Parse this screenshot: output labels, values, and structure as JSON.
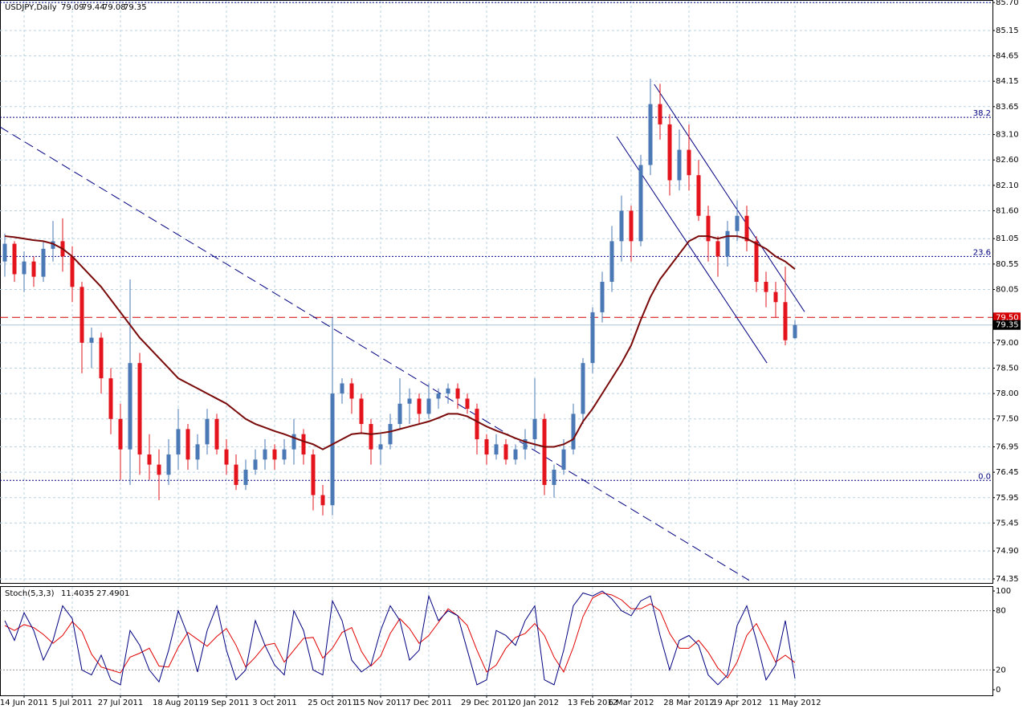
{
  "chart_data": {
    "type": "candlestick",
    "title": "USDJPY,Daily",
    "categories": [
      null,
      null,
      "14 Jun 2011",
      null,
      null,
      null,
      null,
      "5 Jul 2011",
      null,
      null,
      null,
      null,
      "27 Jul 2011",
      null,
      null,
      null,
      null,
      null,
      "18 Aug 2011",
      null,
      null,
      null,
      null,
      "9 Sep 2011",
      null,
      null,
      null,
      null,
      "3 Oct 2011",
      null,
      null,
      null,
      null,
      null,
      "25 Oct 2011",
      null,
      null,
      null,
      null,
      "15 Nov 2011",
      null,
      null,
      null,
      null,
      "7 Dec 2011",
      null,
      null,
      null,
      null,
      null,
      "29 Dec 2011",
      null,
      null,
      null,
      null,
      "20 Jan 2012",
      null,
      null,
      null,
      null,
      null,
      "13 Feb 2012",
      null,
      null,
      null,
      "6 Mar 2012",
      null,
      null,
      null,
      null,
      null,
      "28 Mar 2012",
      null,
      null,
      null,
      null,
      "19 Apr 2012",
      null,
      null,
      null,
      null,
      null,
      "11 May 2012"
    ],
    "open": [
      80.6,
      80.95,
      80.35,
      80.6,
      80.3,
      80.85,
      81.0,
      80.7,
      80.1,
      79.0,
      79.1,
      78.3,
      77.5,
      76.9,
      78.6,
      76.8,
      76.6,
      76.4,
      76.8,
      77.3,
      76.7,
      77.0,
      77.5,
      76.9,
      76.6,
      76.2,
      76.5,
      76.7,
      76.9,
      76.7,
      76.9,
      77.2,
      76.8,
      76.0,
      75.8,
      78.0,
      78.2,
      77.9,
      77.4,
      76.9,
      77.0,
      77.4,
      77.8,
      77.9,
      77.6,
      77.9,
      78.0,
      78.1,
      77.9,
      77.7,
      77.1,
      76.8,
      77.0,
      76.7,
      76.9,
      77.1,
      77.5,
      76.2,
      76.5,
      76.9,
      77.6,
      78.6,
      79.6,
      80.2,
      81.0,
      81.6,
      81.0,
      82.5,
      83.7,
      83.3,
      82.2,
      82.8,
      82.3,
      81.5,
      81.0,
      80.7,
      81.2,
      81.5,
      81.0,
      80.2,
      80.0,
      79.8,
      79.09
    ],
    "high": [
      81.15,
      81.0,
      80.8,
      80.7,
      81.0,
      81.4,
      81.45,
      80.9,
      80.2,
      79.3,
      79.2,
      78.5,
      77.8,
      80.25,
      78.8,
      77.2,
      76.9,
      77.1,
      77.7,
      77.4,
      77.2,
      77.7,
      77.6,
      77.1,
      76.8,
      76.7,
      76.9,
      77.1,
      77.0,
      77.1,
      77.5,
      77.3,
      76.9,
      76.2,
      79.5,
      78.3,
      78.3,
      78.0,
      77.5,
      77.2,
      77.6,
      78.3,
      78.1,
      78.0,
      78.2,
      78.1,
      78.2,
      78.2,
      78.0,
      77.8,
      77.2,
      77.2,
      77.1,
      77.0,
      77.3,
      78.3,
      77.6,
      76.6,
      77.1,
      77.8,
      78.7,
      79.7,
      80.4,
      81.3,
      81.9,
      81.7,
      82.7,
      84.2,
      84.1,
      83.5,
      83.2,
      83.3,
      82.6,
      81.7,
      81.1,
      81.4,
      81.8,
      81.7,
      81.1,
      80.4,
      80.2,
      80.5,
      79.44
    ],
    "low": [
      80.3,
      80.2,
      80.0,
      80.1,
      80.2,
      80.6,
      80.4,
      79.8,
      78.4,
      78.5,
      78.0,
      77.2,
      76.3,
      76.2,
      76.4,
      76.3,
      75.9,
      76.2,
      76.5,
      76.5,
      76.5,
      76.8,
      76.8,
      76.4,
      76.1,
      76.1,
      76.4,
      76.5,
      76.5,
      76.6,
      76.6,
      76.6,
      75.7,
      75.6,
      75.6,
      77.8,
      77.6,
      77.2,
      76.6,
      76.6,
      76.9,
      77.3,
      77.4,
      77.4,
      77.5,
      77.7,
      77.8,
      77.7,
      77.6,
      76.8,
      76.6,
      76.7,
      76.6,
      76.6,
      76.7,
      76.9,
      76.0,
      75.95,
      76.4,
      76.8,
      77.4,
      78.4,
      79.4,
      80.0,
      80.6,
      80.6,
      80.9,
      82.3,
      83.0,
      81.9,
      82.0,
      82.0,
      81.4,
      80.6,
      80.3,
      80.5,
      81.0,
      80.8,
      80.0,
      79.7,
      79.5,
      78.95,
      79.08
    ],
    "close": [
      80.95,
      80.35,
      80.6,
      80.3,
      80.85,
      81.0,
      80.7,
      80.1,
      79.0,
      79.1,
      78.3,
      77.5,
      76.9,
      78.6,
      76.8,
      76.6,
      76.4,
      76.8,
      77.3,
      76.7,
      77.0,
      77.5,
      76.9,
      76.6,
      76.2,
      76.5,
      76.7,
      76.9,
      76.7,
      76.9,
      77.2,
      76.8,
      76.0,
      75.8,
      78.0,
      78.2,
      77.9,
      77.4,
      76.9,
      77.0,
      77.4,
      77.8,
      77.9,
      77.6,
      77.9,
      78.0,
      78.1,
      77.9,
      77.7,
      77.1,
      76.8,
      77.0,
      76.7,
      76.9,
      77.1,
      77.5,
      76.2,
      76.5,
      76.9,
      77.6,
      78.6,
      79.6,
      80.2,
      81.0,
      81.6,
      81.0,
      82.5,
      83.7,
      83.3,
      82.2,
      82.8,
      82.3,
      81.5,
      81.0,
      80.7,
      81.2,
      81.5,
      81.0,
      80.2,
      80.0,
      79.8,
      79.05,
      79.35
    ],
    "up_color": "#4a79b5",
    "down_color": "#e3141c",
    "ylim": [
      74.27,
      85.75
    ],
    "yticks": [
      {
        "value": 85.7,
        "label": "85.70"
      },
      {
        "value": 85.15,
        "label": "85.15"
      },
      {
        "value": 84.65,
        "label": "84.65"
      },
      {
        "value": 84.15,
        "label": "84.15"
      },
      {
        "value": 83.65,
        "label": "83.65"
      },
      {
        "value": 83.1,
        "label": "83.10"
      },
      {
        "value": 82.6,
        "label": "82.60"
      },
      {
        "value": 82.1,
        "label": "82.10"
      },
      {
        "value": 81.6,
        "label": "81.60"
      },
      {
        "value": 81.05,
        "label": "81.05"
      },
      {
        "value": 80.55,
        "label": "80.55"
      },
      {
        "value": 80.05,
        "label": "80.05"
      },
      {
        "value": 79,
        "label": "79.00"
      },
      {
        "value": 78.5,
        "label": "78.50"
      },
      {
        "value": 78,
        "label": "78.00"
      },
      {
        "value": 77.5,
        "label": "77.50"
      },
      {
        "value": 76.95,
        "label": "76.95"
      },
      {
        "value": 76.45,
        "label": "76.45"
      },
      {
        "value": 75.95,
        "label": "75.95"
      },
      {
        "value": 75.45,
        "label": "75.45"
      },
      {
        "value": 74.9,
        "label": "74.90"
      },
      {
        "value": 74.35,
        "label": "74.35"
      }
    ],
    "grid": true,
    "moving_average": {
      "color": "#7a0a0a",
      "values": [
        81.1,
        81.08,
        81.05,
        81.02,
        81.0,
        80.95,
        80.85,
        80.7,
        80.5,
        80.3,
        80.1,
        79.85,
        79.6,
        79.35,
        79.1,
        78.9,
        78.7,
        78.5,
        78.3,
        78.2,
        78.1,
        78.0,
        77.9,
        77.8,
        77.65,
        77.5,
        77.4,
        77.33,
        77.26,
        77.2,
        77.13,
        77.06,
        77.0,
        76.9,
        77.0,
        77.1,
        77.2,
        77.22,
        77.2,
        77.22,
        77.25,
        77.3,
        77.35,
        77.4,
        77.45,
        77.52,
        77.6,
        77.6,
        77.55,
        77.45,
        77.35,
        77.27,
        77.2,
        77.12,
        77.05,
        77.0,
        76.95,
        76.95,
        77.0,
        77.1,
        77.45,
        77.7,
        78.0,
        78.3,
        78.6,
        78.95,
        79.45,
        79.9,
        80.25,
        80.5,
        80.75,
        81.0,
        81.1,
        81.1,
        81.05,
        81.1,
        81.1,
        81.05,
        80.95,
        80.85,
        80.7,
        80.6,
        80.45
      ]
    },
    "levels": [
      {
        "value": 85.7,
        "label": ""
      },
      {
        "value": 83.44,
        "label": "38.2"
      },
      {
        "value": 80.7,
        "label": "23.6"
      },
      {
        "value": 76.29,
        "label": "0.0"
      }
    ],
    "price_lines": [
      {
        "value": 79.5,
        "label": "79.50",
        "color": "#d40000"
      }
    ],
    "trendlines": [
      {
        "x": [
          -0.5,
          77.25
        ],
        "y": [
          83.25,
          74.32
        ],
        "dashed": true
      },
      {
        "x": [
          67.4,
          83
        ],
        "y": [
          84.09,
          79.61
        ],
        "dashed": false
      },
      {
        "x": [
          63.5,
          79.1
        ],
        "y": [
          83.06,
          78.6
        ],
        "dashed": false
      }
    ],
    "oscillator": {
      "title": "Stoch(5,3,3)",
      "ylim": [
        -5.7,
        104.1
      ],
      "yticks": [
        100,
        80,
        20,
        0
      ],
      "levels": [
        80,
        20
      ],
      "series": [
        {
          "color": "#000080",
          "values": [
            70,
            50,
            78,
            60,
            30,
            50,
            85,
            72,
            20,
            15,
            35,
            10,
            5,
            60,
            45,
            20,
            8,
            40,
            80,
            55,
            18,
            60,
            85,
            40,
            10,
            20,
            70,
            45,
            25,
            15,
            80,
            60,
            20,
            15,
            90,
            70,
            30,
            18,
            25,
            60,
            85,
            70,
            30,
            40,
            95,
            70,
            80,
            75,
            40,
            5,
            10,
            60,
            55,
            45,
            70,
            85,
            10,
            5,
            40,
            85,
            98,
            95,
            100,
            92,
            80,
            75,
            90,
            95,
            55,
            20,
            50,
            55,
            45,
            15,
            5,
            15,
            65,
            85,
            50,
            10,
            25,
            70,
            11.4035
          ]
        },
        {
          "color": "#e00000",
          "values": [
            65,
            60,
            66,
            63,
            56,
            47,
            55,
            69,
            59,
            36,
            23,
            20,
            17,
            33,
            37,
            42,
            24,
            23,
            43,
            58,
            51,
            44,
            54,
            62,
            45,
            23,
            33,
            45,
            47,
            28,
            40,
            52,
            53,
            32,
            42,
            58,
            63,
            39,
            24,
            34,
            57,
            72,
            62,
            47,
            55,
            68,
            82,
            75,
            65,
            40,
            18,
            25,
            42,
            53,
            57,
            67,
            55,
            33,
            18,
            43,
            74,
            93,
            98,
            96,
            91,
            82,
            82,
            87,
            80,
            57,
            42,
            42,
            50,
            38,
            22,
            12,
            28,
            55,
            67,
            48,
            28,
            35,
            27.4901
          ]
        }
      ]
    }
  }
}
